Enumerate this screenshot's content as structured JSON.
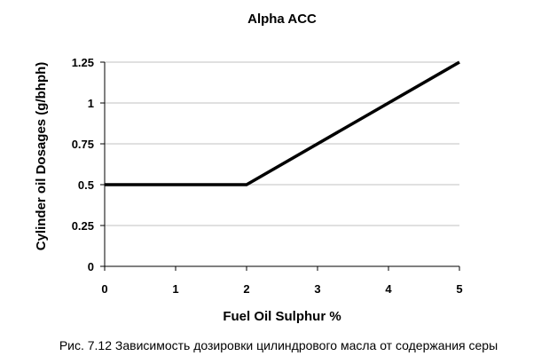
{
  "chart_data": {
    "type": "line",
    "title": "Alpha ACC",
    "xlabel": "Fuel Oil Sulphur %",
    "ylabel": "Cylinder oil Dosages (g/bhph)",
    "xlim": [
      0,
      5
    ],
    "ylim": [
      0,
      1.25
    ],
    "x_ticks": [
      "0",
      "1",
      "2",
      "3",
      "4",
      "5"
    ],
    "x_tick_values": [
      0,
      1,
      2,
      3,
      4,
      5
    ],
    "y_ticks": [
      "0",
      "0.25",
      "0.5",
      "0.75",
      "1",
      "1.25"
    ],
    "y_tick_values": [
      0,
      0.25,
      0.5,
      0.75,
      1,
      1.25
    ],
    "grid": "horizontal",
    "legend": "none",
    "line_color": "#000000",
    "grid_color": "#c0c0c0",
    "series": [
      {
        "x": [
          0,
          2,
          5
        ],
        "y": [
          0.5,
          0.5,
          1.25
        ]
      }
    ]
  },
  "caption": "Рис. 7.12 Зависимость дозировки цилиндрового масла от содержания серы"
}
